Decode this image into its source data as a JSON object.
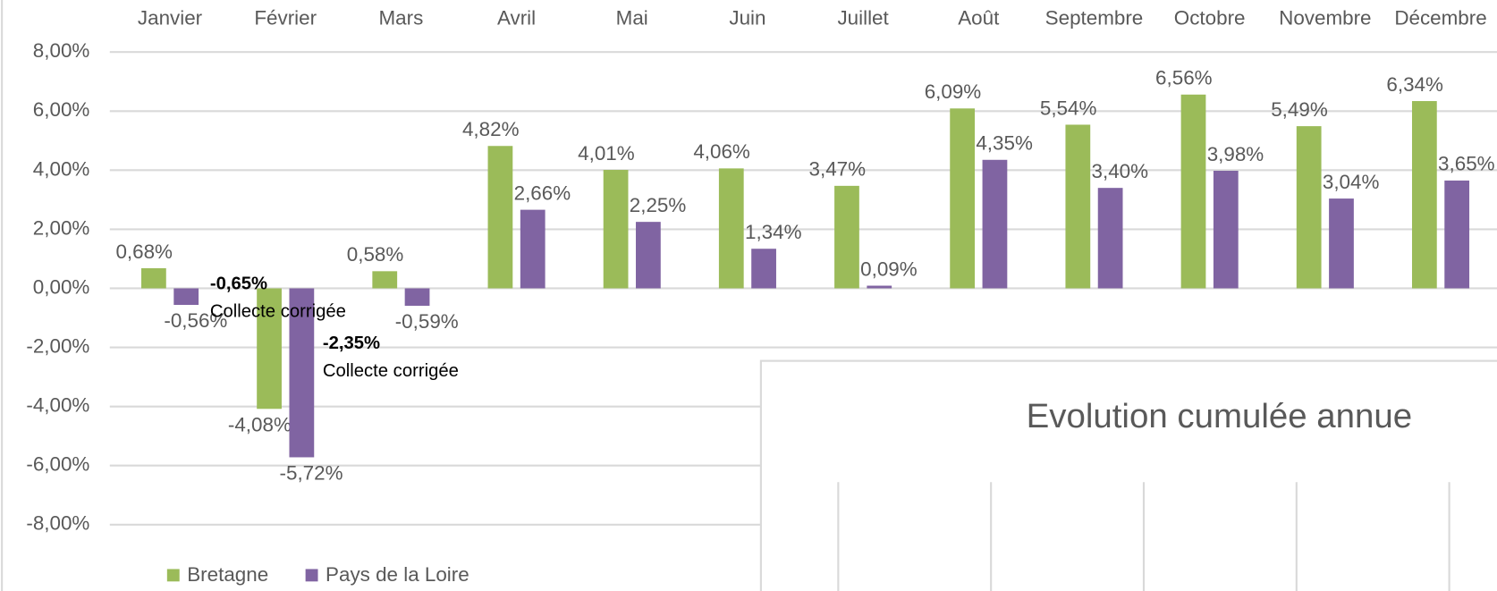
{
  "chart_data": [
    {
      "type": "bar",
      "categories": [
        "Janvier",
        "Février",
        "Mars",
        "Avril",
        "Mai",
        "Juin",
        "Juillet",
        "Août",
        "Septembre",
        "Octobre",
        "Novembre",
        "Décembre"
      ],
      "series": [
        {
          "name": "Bretagne",
          "color": "#9bbb59",
          "values": [
            0.68,
            -4.08,
            0.58,
            4.82,
            4.01,
            4.06,
            3.47,
            6.09,
            5.54,
            6.56,
            5.49,
            6.34
          ],
          "value_labels": [
            "0,68%",
            "-4,08%",
            "0,58%",
            "4,82%",
            "4,01%",
            "4,06%",
            "3,47%",
            "6,09%",
            "5,54%",
            "6,56%",
            "5,49%",
            "6,34%"
          ]
        },
        {
          "name": "Pays de la Loire",
          "color": "#8064a2",
          "values": [
            -0.56,
            -5.72,
            -0.59,
            2.66,
            2.25,
            1.34,
            0.09,
            4.35,
            3.4,
            3.98,
            3.04,
            3.65
          ],
          "value_labels": [
            "-0,56%",
            "-5,72%",
            "-0,59%",
            "2,66%",
            "2,25%",
            "1,34%",
            "0,09%",
            "4,35%",
            "3,40%",
            "3,98%",
            "3,04%",
            "3,65%"
          ]
        }
      ],
      "ylim": [
        -9,
        8.8
      ],
      "yticks": [
        {
          "value": 8,
          "label": "8,00%"
        },
        {
          "value": 6,
          "label": "6,00%"
        },
        {
          "value": 4,
          "label": "4,00%"
        },
        {
          "value": 2,
          "label": "2,00%"
        },
        {
          "value": 0,
          "label": "0,00%"
        },
        {
          "value": -2,
          "label": "-2,00%"
        },
        {
          "value": -4,
          "label": "-4,00%"
        },
        {
          "value": -6,
          "label": "-6,00%"
        },
        {
          "value": -8,
          "label": "-8,00%"
        }
      ],
      "grid": true,
      "legend": "bottom-left",
      "annotations": [
        {
          "label": "-0,65%",
          "text": "Collecte corrigée"
        },
        {
          "label": "-2,35%",
          "text": "Collecte corrigée"
        }
      ]
    },
    {
      "title": "Evolution cumulée annue"
    }
  ]
}
